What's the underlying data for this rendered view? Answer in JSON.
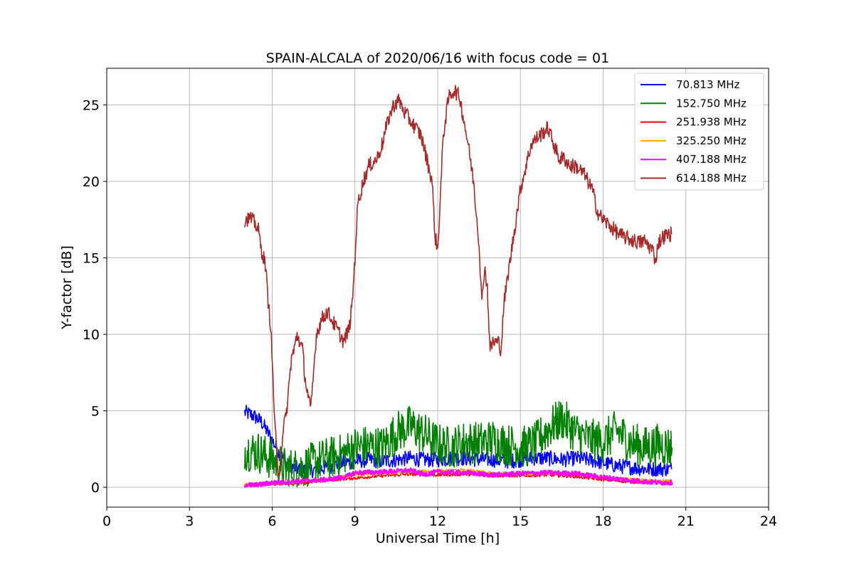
{
  "chart_data": {
    "type": "line",
    "title": "SPAIN-ALCALA of 2020/06/16 with focus code = 01",
    "xlabel": "Universal Time [h]",
    "ylabel": "Y-factor [dB]",
    "xlim": [
      0,
      24
    ],
    "ylim": [
      -1.3,
      27.4
    ],
    "xticks": [
      0,
      3,
      6,
      9,
      12,
      15,
      18,
      21,
      24
    ],
    "yticks": [
      0,
      5,
      10,
      15,
      20,
      25
    ],
    "grid": true,
    "legend_position": "top-right",
    "series": [
      {
        "name": " 70.813 MHz",
        "color": "#0000ff",
        "noise": 0.5,
        "points": [
          [
            5.0,
            4.9
          ],
          [
            5.3,
            4.7
          ],
          [
            5.6,
            4.3
          ],
          [
            5.9,
            3.4
          ],
          [
            6.2,
            2.4
          ],
          [
            6.5,
            1.6
          ],
          [
            6.8,
            1.3
          ],
          [
            7.1,
            1.1
          ],
          [
            7.4,
            1.1
          ],
          [
            7.7,
            1.2
          ],
          [
            8.0,
            1.3
          ],
          [
            8.5,
            1.6
          ],
          [
            9.0,
            1.7
          ],
          [
            9.5,
            1.8
          ],
          [
            10.0,
            1.7
          ],
          [
            10.5,
            1.8
          ],
          [
            11.0,
            1.9
          ],
          [
            11.5,
            1.8
          ],
          [
            12.0,
            1.8
          ],
          [
            12.5,
            1.9
          ],
          [
            13.0,
            1.9
          ],
          [
            13.5,
            1.8
          ],
          [
            14.0,
            1.8
          ],
          [
            14.5,
            1.7
          ],
          [
            15.0,
            1.8
          ],
          [
            15.5,
            1.9
          ],
          [
            16.0,
            1.9
          ],
          [
            16.5,
            1.8
          ],
          [
            17.0,
            1.9
          ],
          [
            17.5,
            1.8
          ],
          [
            18.0,
            1.6
          ],
          [
            18.5,
            1.4
          ],
          [
            19.0,
            1.3
          ],
          [
            19.5,
            1.2
          ],
          [
            20.0,
            1.2
          ],
          [
            20.5,
            1.2
          ]
        ]
      },
      {
        "name": "152.750 MHz",
        "color": "#008000",
        "noise": 1.4,
        "points": [
          [
            5.0,
            2.5
          ],
          [
            5.5,
            2.3
          ],
          [
            6.0,
            1.8
          ],
          [
            6.5,
            1.2
          ],
          [
            7.0,
            1.2
          ],
          [
            7.5,
            1.6
          ],
          [
            8.0,
            1.9
          ],
          [
            8.5,
            2.1
          ],
          [
            9.0,
            2.6
          ],
          [
            9.5,
            2.7
          ],
          [
            10.0,
            2.6
          ],
          [
            10.5,
            3.6
          ],
          [
            11.0,
            4.0
          ],
          [
            11.5,
            3.5
          ],
          [
            12.0,
            2.8
          ],
          [
            12.5,
            2.6
          ],
          [
            13.0,
            3.0
          ],
          [
            13.5,
            2.9
          ],
          [
            14.0,
            3.1
          ],
          [
            14.5,
            2.8
          ],
          [
            15.0,
            2.6
          ],
          [
            15.5,
            2.8
          ],
          [
            16.0,
            3.8
          ],
          [
            16.5,
            4.5
          ],
          [
            17.0,
            3.6
          ],
          [
            17.5,
            3.1
          ],
          [
            18.0,
            3.0
          ],
          [
            18.5,
            3.7
          ],
          [
            19.0,
            2.9
          ],
          [
            19.5,
            2.6
          ],
          [
            20.0,
            2.8
          ],
          [
            20.5,
            2.6
          ]
        ]
      },
      {
        "name": "251.938 MHz",
        "color": "#ff0000",
        "noise": 0.1,
        "points": [
          [
            5.0,
            0.1
          ],
          [
            6.0,
            0.2
          ],
          [
            7.0,
            0.3
          ],
          [
            8.0,
            0.45
          ],
          [
            9.0,
            0.6
          ],
          [
            10.0,
            0.75
          ],
          [
            11.0,
            0.85
          ],
          [
            12.0,
            0.8
          ],
          [
            13.0,
            0.85
          ],
          [
            14.0,
            0.75
          ],
          [
            15.0,
            0.75
          ],
          [
            16.0,
            0.8
          ],
          [
            17.0,
            0.7
          ],
          [
            18.0,
            0.5
          ],
          [
            19.0,
            0.35
          ],
          [
            20.0,
            0.3
          ],
          [
            20.5,
            0.3
          ]
        ]
      },
      {
        "name": "325.250 MHz",
        "color": "#ffa500",
        "noise": 0.12,
        "points": [
          [
            5.0,
            0.15
          ],
          [
            6.0,
            0.25
          ],
          [
            7.0,
            0.35
          ],
          [
            8.0,
            0.5
          ],
          [
            9.0,
            0.8
          ],
          [
            10.0,
            0.9
          ],
          [
            11.0,
            1.0
          ],
          [
            12.0,
            1.05
          ],
          [
            13.0,
            1.1
          ],
          [
            14.0,
            0.9
          ],
          [
            15.0,
            0.9
          ],
          [
            16.0,
            0.9
          ],
          [
            17.0,
            0.85
          ],
          [
            18.0,
            0.65
          ],
          [
            19.0,
            0.5
          ],
          [
            20.0,
            0.4
          ],
          [
            20.5,
            0.4
          ]
        ]
      },
      {
        "name": "407.188 MHz",
        "color": "#ff00ff",
        "noise": 0.15,
        "points": [
          [
            5.0,
            0.15
          ],
          [
            5.5,
            0.15
          ],
          [
            6.0,
            0.3
          ],
          [
            7.0,
            0.4
          ],
          [
            8.0,
            0.5
          ],
          [
            8.7,
            0.7
          ],
          [
            9.0,
            0.95
          ],
          [
            10.0,
            1.0
          ],
          [
            11.0,
            1.1
          ],
          [
            11.5,
            0.85
          ],
          [
            12.0,
            1.0
          ],
          [
            13.0,
            0.95
          ],
          [
            14.0,
            0.8
          ],
          [
            15.0,
            0.9
          ],
          [
            16.0,
            0.95
          ],
          [
            17.0,
            0.9
          ],
          [
            18.0,
            0.65
          ],
          [
            19.0,
            0.45
          ],
          [
            20.0,
            0.3
          ],
          [
            20.5,
            0.3
          ]
        ]
      },
      {
        "name": "614.188 MHz",
        "color": "#a52a2a",
        "noise": 0.5,
        "points": [
          [
            5.0,
            17.5
          ],
          [
            5.2,
            17.6
          ],
          [
            5.4,
            17.2
          ],
          [
            5.5,
            16.8
          ],
          [
            5.6,
            15.6
          ],
          [
            5.75,
            14.6
          ],
          [
            5.85,
            12.2
          ],
          [
            5.95,
            10.5
          ],
          [
            6.05,
            6.0
          ],
          [
            6.15,
            2.5
          ],
          [
            6.2,
            0.5
          ],
          [
            6.3,
            1.5
          ],
          [
            6.4,
            4.0
          ],
          [
            6.5,
            4.5
          ],
          [
            6.6,
            6.5
          ],
          [
            6.7,
            8.5
          ],
          [
            6.8,
            9.0
          ],
          [
            6.9,
            10.0
          ],
          [
            7.0,
            9.5
          ],
          [
            7.1,
            9.0
          ],
          [
            7.2,
            7.0
          ],
          [
            7.3,
            6.0
          ],
          [
            7.4,
            5.0
          ],
          [
            7.5,
            7.5
          ],
          [
            7.6,
            10.0
          ],
          [
            7.8,
            11.0
          ],
          [
            8.0,
            11.5
          ],
          [
            8.3,
            10.5
          ],
          [
            8.6,
            9.5
          ],
          [
            8.8,
            10.5
          ],
          [
            8.9,
            12.0
          ],
          [
            9.0,
            15.0
          ],
          [
            9.1,
            18.5
          ],
          [
            9.3,
            20.0
          ],
          [
            9.5,
            21.0
          ],
          [
            9.8,
            21.5
          ],
          [
            10.0,
            22.5
          ],
          [
            10.2,
            24.0
          ],
          [
            10.4,
            25.0
          ],
          [
            10.6,
            25.3
          ],
          [
            10.8,
            24.5
          ],
          [
            11.0,
            24.0
          ],
          [
            11.2,
            23.5
          ],
          [
            11.4,
            23.0
          ],
          [
            11.6,
            21.5
          ],
          [
            11.8,
            20.0
          ],
          [
            11.9,
            16.5
          ],
          [
            12.0,
            15.5
          ],
          [
            12.1,
            19.0
          ],
          [
            12.2,
            23.0
          ],
          [
            12.4,
            25.5
          ],
          [
            12.6,
            26.0
          ],
          [
            12.8,
            25.5
          ],
          [
            12.9,
            24.5
          ],
          [
            13.1,
            22.5
          ],
          [
            13.3,
            20.0
          ],
          [
            13.5,
            16.0
          ],
          [
            13.6,
            12.0
          ],
          [
            13.7,
            14.5
          ],
          [
            13.8,
            13.0
          ],
          [
            13.9,
            9.0
          ],
          [
            14.0,
            9.5
          ],
          [
            14.2,
            9.5
          ],
          [
            14.3,
            9.0
          ],
          [
            14.4,
            12.0
          ],
          [
            14.6,
            14.5
          ],
          [
            14.8,
            17.0
          ],
          [
            15.0,
            19.5
          ],
          [
            15.2,
            21.0
          ],
          [
            15.4,
            22.5
          ],
          [
            15.7,
            23.0
          ],
          [
            16.0,
            23.5
          ],
          [
            16.2,
            22.5
          ],
          [
            16.4,
            21.5
          ],
          [
            16.6,
            21.5
          ],
          [
            16.8,
            21.0
          ],
          [
            17.0,
            21.0
          ],
          [
            17.3,
            20.5
          ],
          [
            17.6,
            19.5
          ],
          [
            17.8,
            18.0
          ],
          [
            18.0,
            17.5
          ],
          [
            18.3,
            17.0
          ],
          [
            18.6,
            16.5
          ],
          [
            19.0,
            16.2
          ],
          [
            19.3,
            16.0
          ],
          [
            19.5,
            16.1
          ],
          [
            19.8,
            15.5
          ],
          [
            19.9,
            14.8
          ],
          [
            20.0,
            16.0
          ],
          [
            20.2,
            16.4
          ],
          [
            20.5,
            16.6
          ]
        ]
      }
    ]
  }
}
